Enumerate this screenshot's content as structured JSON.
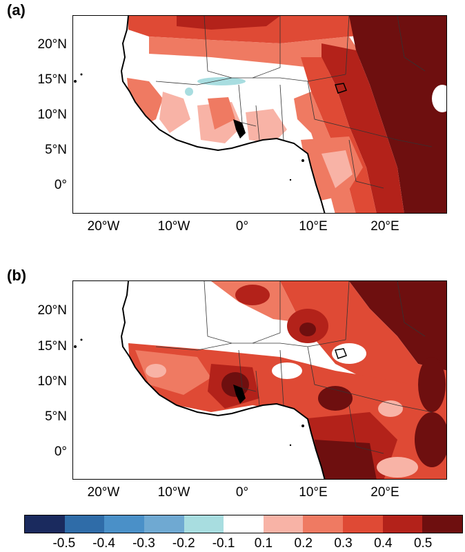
{
  "panels": [
    {
      "label": "(a)"
    },
    {
      "label": "(b)"
    }
  ],
  "axes": {
    "lat_ticks": [
      "20°N",
      "15°N",
      "10°N",
      "5°N",
      "0°"
    ],
    "lon_ticks": [
      "20°W",
      "10°W",
      "0°",
      "10°E",
      "20°E"
    ]
  },
  "colorbar": {
    "colors": [
      "#1a2a5e",
      "#2f6ca8",
      "#4a90c8",
      "#6fa9d2",
      "#a8dde0",
      "#ffffff",
      "#f8b3a6",
      "#ef7a62",
      "#df4a35",
      "#b3221a",
      "#6e0f0f"
    ],
    "tick_labels": [
      "-0.5",
      "-0.4",
      "-0.3",
      "-0.2",
      "-0.1",
      "0.1",
      "0.2",
      "0.3",
      "0.4",
      "0.5"
    ]
  }
}
